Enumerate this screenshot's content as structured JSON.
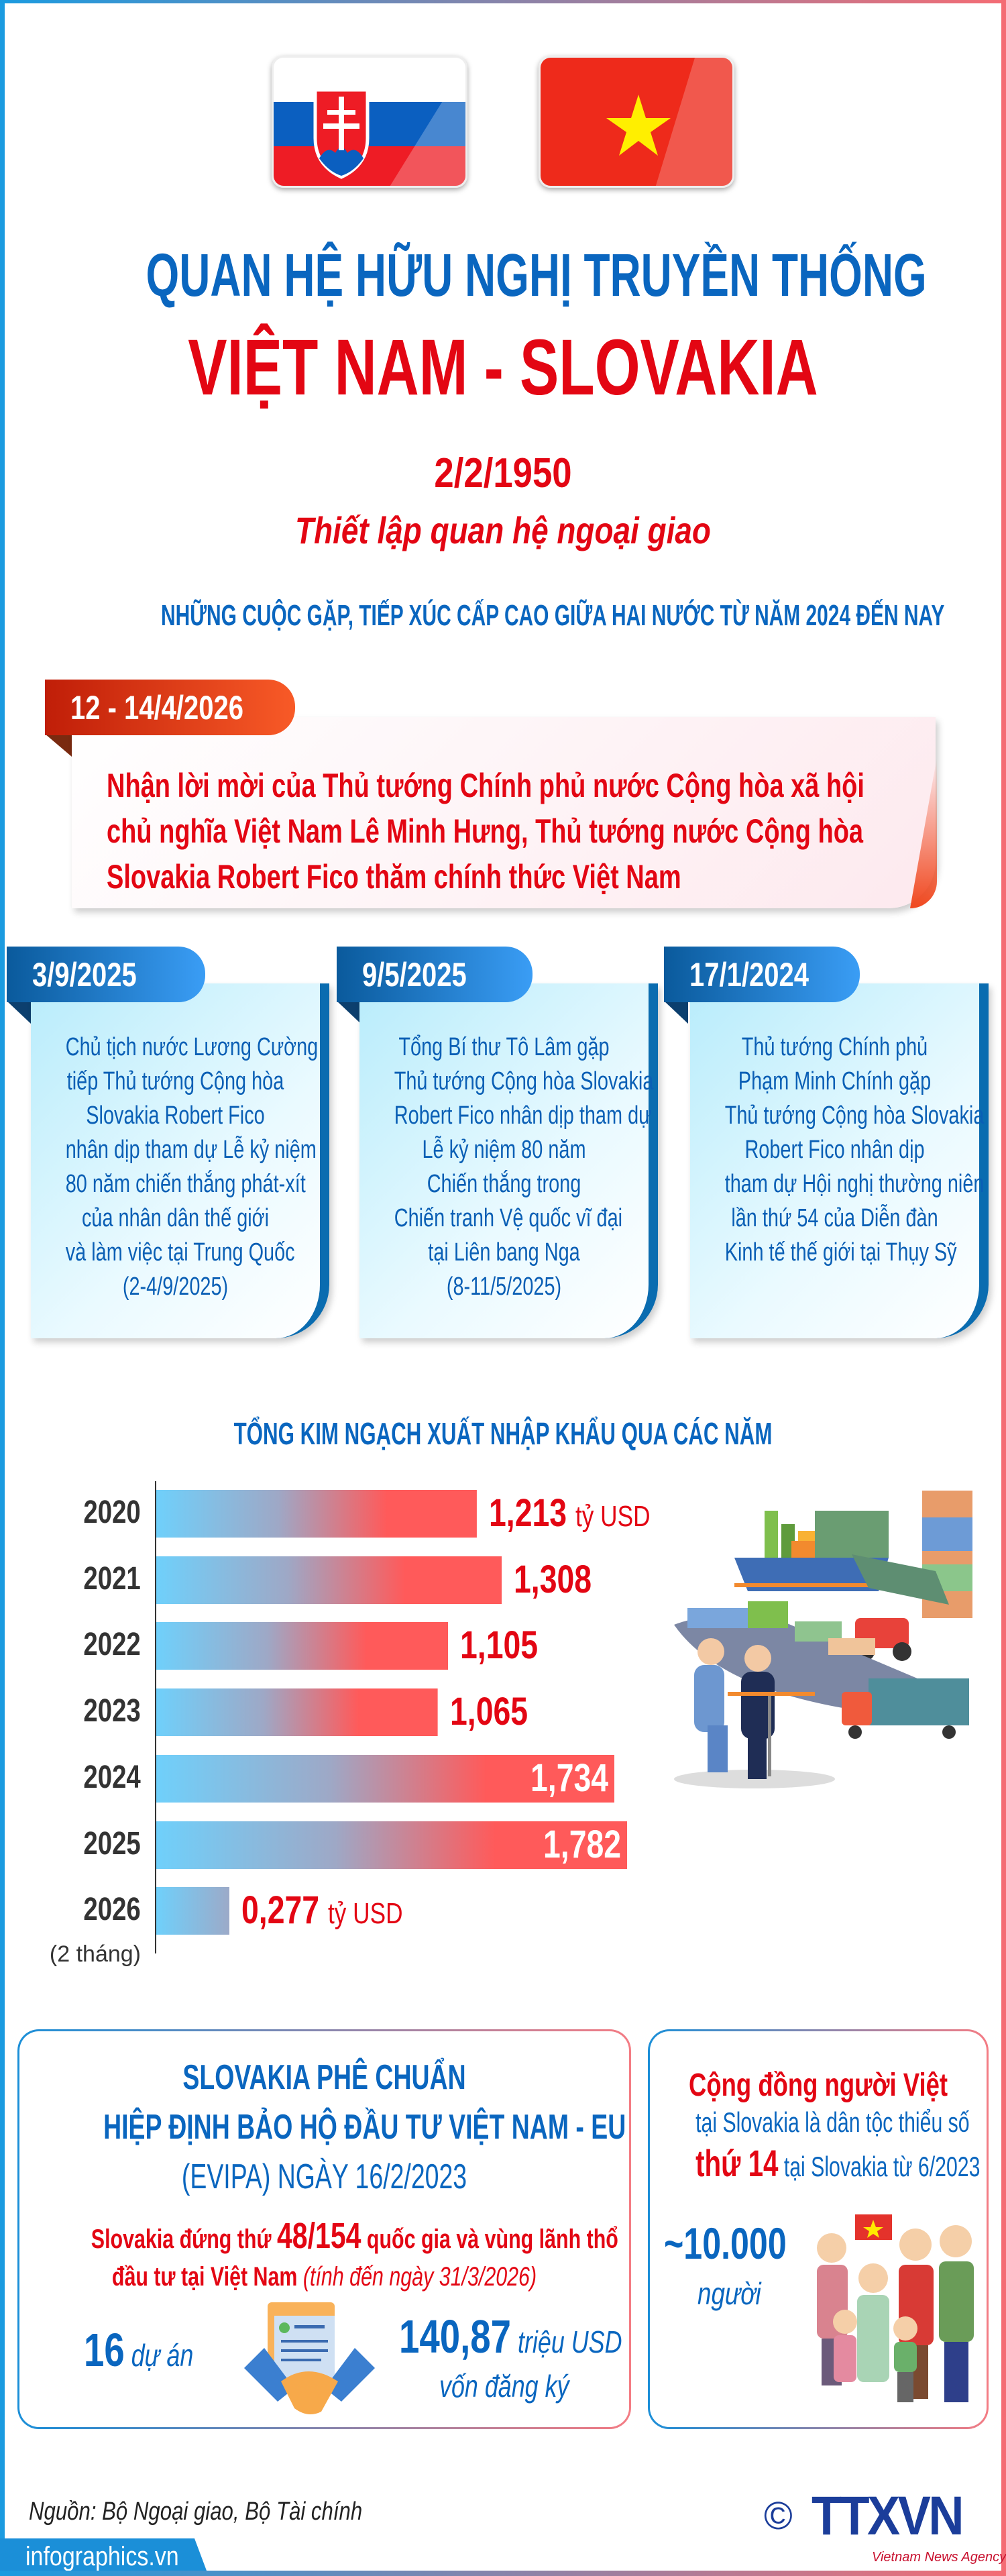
{
  "header": {
    "flags": [
      "slovakia-flag",
      "vietnam-flag"
    ],
    "title_line1": "QUAN HỆ HỮU NGHỊ TRUYỀN THỐNG",
    "title_line2": "VIỆT NAM - SLOVAKIA",
    "date": "2/2/1950",
    "date_caption": "Thiết lập quan hệ ngoại giao",
    "section_title": "NHỮNG CUỘC GẶP, TIẾP XÚC CẤP CAO GIỮA HAI NƯỚC TỪ NĂM 2024 ĐẾN NAY"
  },
  "featured_meeting": {
    "date": "12 - 14/4/2026",
    "lines": [
      "Nhận lời mời của Thủ tướng Chính phủ nước Cộng hòa xã hội",
      "chủ nghĩa Việt Nam Lê Minh Hưng, Thủ tướng nước Cộng hòa",
      "Slovakia Robert Fico thăm chính thức Việt Nam"
    ]
  },
  "meetings": [
    {
      "date": "3/9/2025",
      "lines": [
        "Chủ tịch nước Lương Cường",
        "tiếp Thủ tướng Cộng hòa",
        "Slovakia Robert Fico",
        "nhân dịp tham dự Lễ kỷ niệm",
        "80 năm chiến thắng phát-xít",
        "của nhân dân thế giới",
        "và làm việc tại Trung Quốc",
        "(2-4/9/2025)"
      ]
    },
    {
      "date": "9/5/2025",
      "lines": [
        "Tổng Bí thư Tô Lâm gặp",
        "Thủ tướng Cộng hòa Slovakia",
        "Robert Fico nhân dịp tham dự",
        "Lễ kỷ niệm 80 năm",
        "Chiến thắng trong",
        "Chiến tranh Vệ quốc vĩ đại",
        "tại Liên bang Nga",
        "(8-11/5/2025)"
      ]
    },
    {
      "date": "17/1/2024",
      "lines": [
        "Thủ tướng Chính phủ",
        "Phạm Minh Chính gặp",
        "Thủ tướng Cộng hòa Slovakia",
        "Robert Fico nhân dịp",
        "tham dự Hội nghị thường niên",
        "lần thứ 54 của Diễn đàn",
        "Kinh tế thế giới tại Thụy Sỹ"
      ]
    }
  ],
  "chart_data": {
    "type": "bar",
    "orientation": "horizontal",
    "title": "TỔNG KIM NGẠCH XUẤT NHẬP KHẨU QUA CÁC NĂM",
    "categories": [
      "2020",
      "2021",
      "2022",
      "2023",
      "2024",
      "2025",
      "2026"
    ],
    "category_notes": [
      "",
      "",
      "",
      "",
      "",
      "",
      "(2 tháng)"
    ],
    "values": [
      1.213,
      1.308,
      1.105,
      1.065,
      1.734,
      1.782,
      0.277
    ],
    "labels": [
      {
        "value": "1,213",
        "unit": "tỷ USD"
      },
      {
        "value": "1,308",
        "unit": ""
      },
      {
        "value": "1,105",
        "unit": ""
      },
      {
        "value": "1,065",
        "unit": ""
      },
      {
        "value": "1,734",
        "unit": ""
      },
      {
        "value": "1,782",
        "unit": ""
      },
      {
        "value": "0,277",
        "unit": "tỷ USD"
      }
    ],
    "unit": "tỷ USD",
    "xlim": [
      0,
      2
    ],
    "grid": false,
    "colors": {
      "bar_start": "#6fd0fb",
      "bar_end": "#ff5a5a",
      "label": "#e30613"
    }
  },
  "evipa": {
    "title_lines": [
      "SLOVAKIA PHÊ CHUẨN",
      "HIỆP ĐỊNH BẢO HỘ ĐẦU TƯ VIỆT NAM - EU",
      "(EVIPA) NGÀY 16/2/2023"
    ],
    "rank_prefix": "Slovakia đứng thứ ",
    "rank_value": "48/154",
    "rank_suffix": " quốc gia và vùng lãnh thổ",
    "rank_line2": "đầu tư tại Việt Nam ",
    "rank_note": "(tính đến ngày 31/3/2026)",
    "projects_value": "16",
    "projects_label": " dự án",
    "capital_value": "140,87",
    "capital_unit": " triệu USD",
    "capital_label": "vốn đăng ký"
  },
  "community": {
    "title": "Cộng đồng người Việt",
    "line2": "tại Slovakia là dân tộc thiểu số",
    "line3_bold": "thứ 14",
    "line3_rest": " tại Slovakia từ 6/2023",
    "population": "~10.000",
    "population_unit": "người"
  },
  "footer": {
    "source": "Nguồn: Bộ Ngoại giao, Bộ Tài chính",
    "copyright": "©",
    "logo_text": "TTXVN",
    "logo_sub": "Vietnam News Agency",
    "site": "infographics.vn"
  },
  "colors": {
    "blue": "#0a66bf",
    "red": "#e30613",
    "dark_blue": "#0a5c9e"
  }
}
